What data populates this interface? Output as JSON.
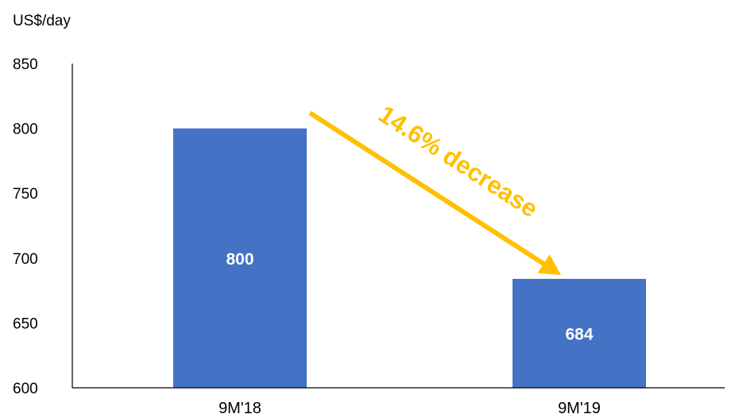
{
  "chart_data": {
    "type": "bar",
    "title": "",
    "ylabel": "US$/day",
    "xlabel": "",
    "categories": [
      "9M'18",
      "9M'19"
    ],
    "values": [
      800,
      684
    ],
    "data_labels": [
      "800",
      "684"
    ],
    "ylim": [
      600,
      850
    ],
    "yticks": [
      600,
      650,
      700,
      750,
      800,
      850
    ],
    "grid": false,
    "legend": "none",
    "bar_color": "#4472C4",
    "annotation": {
      "text": "14.6% decrease",
      "color": "#FFC000",
      "from_category": "9M'18",
      "to_category": "9M'19"
    }
  }
}
